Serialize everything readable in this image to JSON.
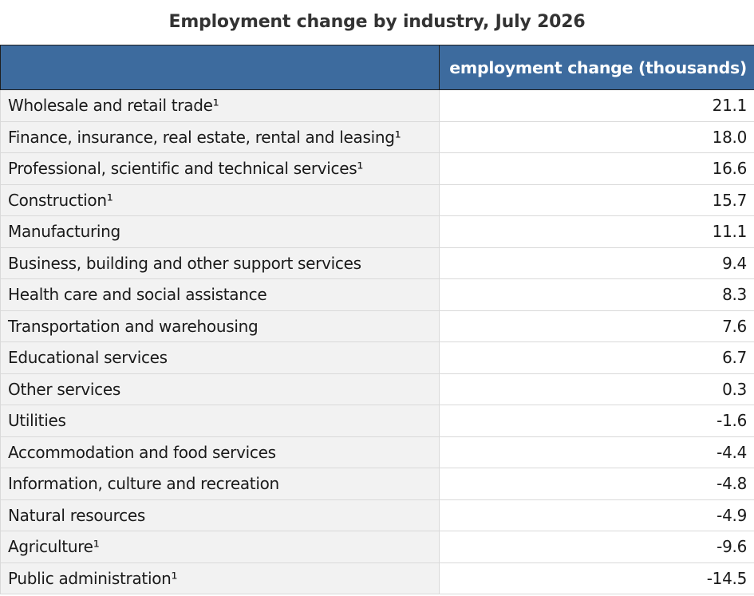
{
  "chart_data": {
    "type": "table",
    "title": "Employment change by industry, July 2026",
    "columns": [
      "",
      "employment change (thousands)"
    ],
    "rows": [
      {
        "label": "Wholesale and retail trade¹",
        "value": "21.1"
      },
      {
        "label": "Finance, insurance, real estate, rental and leasing¹",
        "value": "18.0"
      },
      {
        "label": "Professional, scientific and technical services¹",
        "value": "16.6"
      },
      {
        "label": "Construction¹",
        "value": "15.7"
      },
      {
        "label": "Manufacturing",
        "value": "11.1"
      },
      {
        "label": "Business, building and other support services",
        "value": "9.4"
      },
      {
        "label": "Health care and social assistance",
        "value": "8.3"
      },
      {
        "label": "Transportation and warehousing",
        "value": "7.6"
      },
      {
        "label": "Educational services",
        "value": "6.7"
      },
      {
        "label": "Other services",
        "value": "0.3"
      },
      {
        "label": "Utilities",
        "value": "-1.6"
      },
      {
        "label": "Accommodation and food services",
        "value": "-4.4"
      },
      {
        "label": "Information, culture and recreation",
        "value": "-4.8"
      },
      {
        "label": "Natural resources",
        "value": "-4.9"
      },
      {
        "label": "Agriculture¹",
        "value": "-9.6"
      },
      {
        "label": "Public administration¹",
        "value": "-14.5"
      }
    ]
  },
  "colors": {
    "header_background": "#3d6b9e",
    "header_text": "#ffffff",
    "label_column_background": "#f2f2f2"
  }
}
